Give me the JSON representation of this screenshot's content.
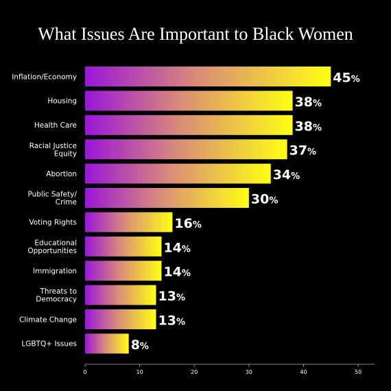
{
  "chart_data": {
    "type": "bar",
    "orientation": "horizontal",
    "title": "What Issues Are Important to Black Women",
    "categories": [
      "Inflation/Economy",
      "Housing",
      "Health Care",
      "Racial Justice Equity",
      "Abortion",
      "Public Safety/ Crime",
      "Voting Rights",
      "Educational Opportunities",
      "Immigration",
      "Threats to Democracy",
      "Climate Change",
      "LGBTQ+ Issues"
    ],
    "category_lines": [
      [
        "Inflation/Economy"
      ],
      [
        "Housing"
      ],
      [
        "Health Care"
      ],
      [
        "Racial Justice",
        "Equity"
      ],
      [
        "Abortion"
      ],
      [
        "Public Safety/",
        "Crime"
      ],
      [
        "Voting Rights"
      ],
      [
        "Educational",
        "Opportunities"
      ],
      [
        "Immigration"
      ],
      [
        "Threats to",
        "Democracy"
      ],
      [
        "Climate Change"
      ],
      [
        "LGBTQ+ Issues"
      ]
    ],
    "values": [
      45,
      38,
      38,
      37,
      34,
      30,
      16,
      14,
      14,
      13,
      13,
      8
    ],
    "value_labels": [
      "45",
      "38",
      "38",
      "37",
      "34",
      "30",
      "16",
      "14",
      "14",
      "13",
      "13",
      "8"
    ],
    "value_suffix": "%",
    "xlim": [
      0,
      53
    ],
    "xticks": [
      0,
      10,
      20,
      30,
      40,
      50
    ],
    "xlabel": "",
    "ylabel": "",
    "grid": false,
    "legend": "none",
    "colors": {
      "background": "#000000",
      "text": "#ffffff",
      "bar_start": "#9a16d8",
      "bar_mid": "#d98a7a",
      "bar_end": "#ffff12",
      "axis": "#888888"
    }
  }
}
